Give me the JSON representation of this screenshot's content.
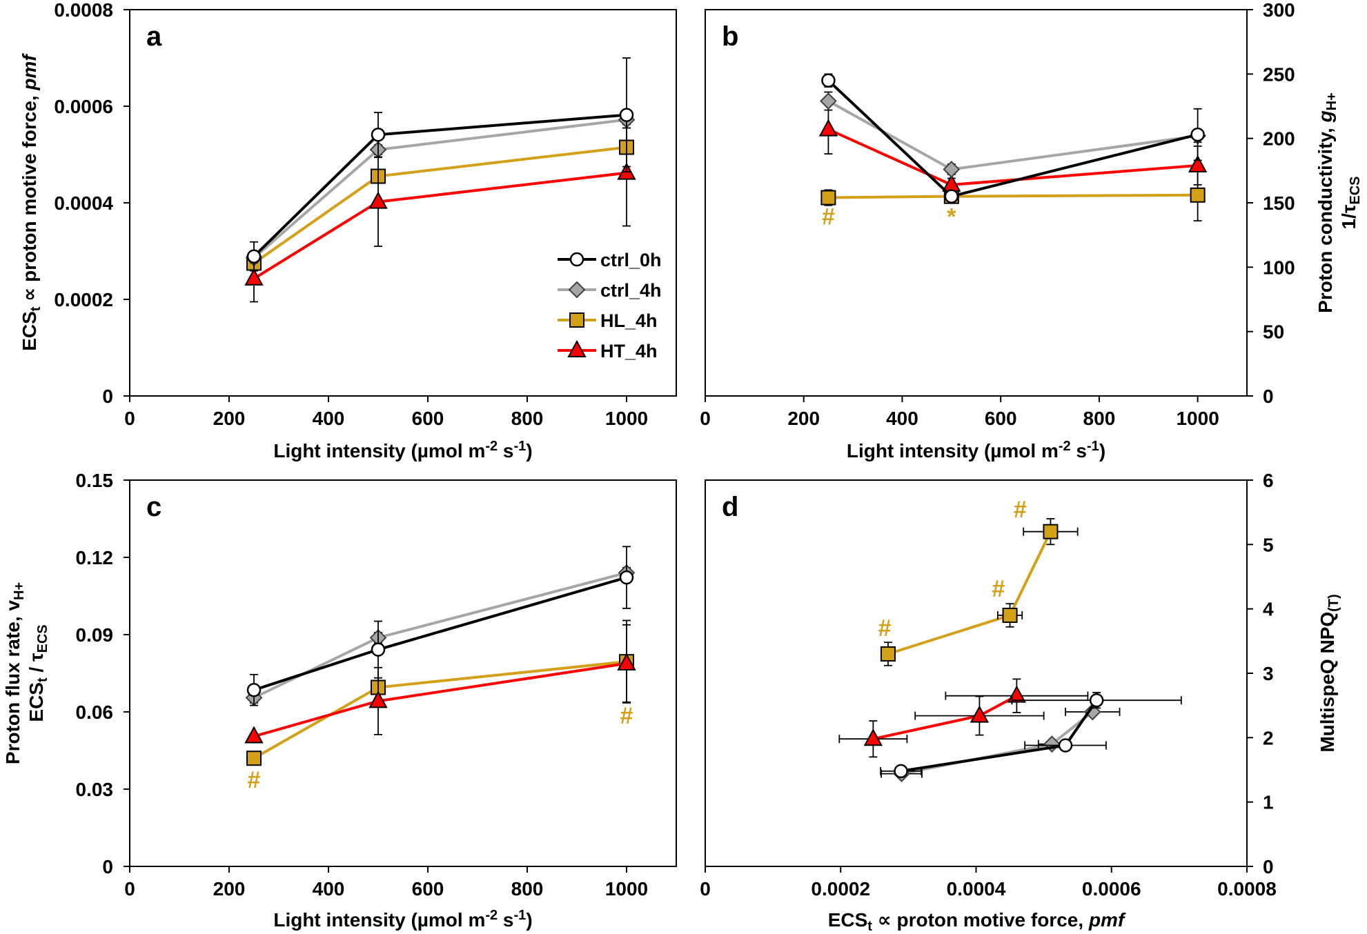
{
  "figure": {
    "series_styles": [
      {
        "name": "ctrl_0h",
        "color": "#000000",
        "marker": "circle",
        "fill": "#ffffff"
      },
      {
        "name": "ctrl_4h",
        "color": "#a6a6a6",
        "marker": "diamond",
        "fill": "#a6a6a6"
      },
      {
        "name": "HL_4h",
        "color": "#d4a017",
        "marker": "square",
        "fill": "#d4a017"
      },
      {
        "name": "HT_4h",
        "color": "#ff0000",
        "marker": "triangle",
        "fill": "#ff0000"
      }
    ],
    "annotation_color": "#d4a017"
  },
  "chart_data": [
    {
      "panel": "a",
      "type": "line",
      "ylabel_parts": [
        "ECS",
        "t",
        " ∝ proton motive force, ",
        "pmf"
      ],
      "xlabel_parts": [
        "Light intensity (µmol m",
        "-2",
        " s",
        "-1",
        ")"
      ],
      "xlim": [
        0,
        1100
      ],
      "ylim": [
        0,
        0.0008
      ],
      "xticks": [
        0,
        200,
        400,
        600,
        800,
        1000
      ],
      "yticks": [
        0,
        0.0002,
        0.0004,
        0.0006,
        0.0008
      ],
      "ytick_labels": [
        "0",
        "0.0002",
        "0.0004",
        "0.0006",
        "0.0008"
      ],
      "yaxis_side": "left",
      "legend": "center-right",
      "series": [
        {
          "name": "ctrl_0h",
          "x": [
            250,
            500,
            1000
          ],
          "y": [
            0.000289,
            0.000541,
            0.000582
          ],
          "yerr": [
            3e-05,
            4.6e-05,
            0.000118
          ],
          "xerr": [
            0,
            0,
            0
          ]
        },
        {
          "name": "ctrl_4h",
          "x": [
            250,
            500,
            1000
          ],
          "y": [
            0.000286,
            0.00051,
            0.000572
          ],
          "yerr": [
            1e-05,
            1e-05,
            1e-05
          ],
          "xerr": [
            0,
            0,
            0
          ]
        },
        {
          "name": "HL_4h",
          "x": [
            250,
            500,
            1000
          ],
          "y": [
            0.000275,
            0.000455,
            0.000515
          ],
          "yerr": [
            1e-05,
            1e-05,
            4e-05
          ],
          "xerr": [
            0,
            0,
            0
          ]
        },
        {
          "name": "HT_4h",
          "x": [
            250,
            500,
            1000
          ],
          "y": [
            0.000243,
            0.000402,
            0.000462
          ],
          "yerr": [
            4.8e-05,
            9.2e-05,
            0.00011
          ],
          "xerr": [
            0,
            0,
            0
          ]
        }
      ],
      "annotations": []
    },
    {
      "panel": "b",
      "type": "line",
      "ylabel_lines": [
        [
          "Proton conductivity, ",
          "g",
          "H+"
        ],
        [
          "1/τ",
          "ECS"
        ]
      ],
      "xlabel_parts": [
        "Light intensity (µmol m",
        "-2",
        " s",
        "-1",
        ")"
      ],
      "xlim": [
        0,
        1100
      ],
      "ylim": [
        0,
        300
      ],
      "xticks": [
        0,
        200,
        400,
        600,
        800,
        1000
      ],
      "yticks": [
        0,
        50,
        100,
        150,
        200,
        250,
        300
      ],
      "ytick_labels": [
        "0",
        "50",
        "100",
        "150",
        "200",
        "250",
        "300"
      ],
      "yaxis_side": "right",
      "series": [
        {
          "name": "ctrl_0h",
          "x": [
            250,
            500,
            1000
          ],
          "y": [
            245,
            155,
            203
          ],
          "yerr": [
            5,
            4,
            20
          ],
          "xerr": [
            0,
            0,
            0
          ]
        },
        {
          "name": "ctrl_4h",
          "x": [
            250,
            500,
            1000
          ],
          "y": [
            229,
            176,
            202
          ],
          "yerr": [
            7,
            4,
            5
          ],
          "xerr": [
            0,
            0,
            0
          ]
        },
        {
          "name": "HL_4h",
          "x": [
            250,
            500,
            1000
          ],
          "y": [
            154,
            155,
            156
          ],
          "yerr": [
            6,
            3,
            20
          ],
          "xerr": [
            0,
            0,
            0
          ]
        },
        {
          "name": "HT_4h",
          "x": [
            250,
            500,
            1000
          ],
          "y": [
            207,
            164,
            179
          ],
          "yerr": [
            19,
            5,
            15
          ],
          "xerr": [
            0,
            0,
            0
          ]
        }
      ],
      "annotations": [
        {
          "text": "#",
          "x": 250,
          "y": 133
        },
        {
          "text": "*",
          "x": 500,
          "y": 133
        }
      ]
    },
    {
      "panel": "c",
      "type": "line",
      "ylabel_lines": [
        [
          "Proton flux rate, v",
          "H+"
        ],
        [
          "ECS",
          "t",
          " / τ",
          "ECS"
        ]
      ],
      "xlabel_parts": [
        "Light intensity (µmol m",
        "-2",
        " s",
        "-1",
        ")"
      ],
      "xlim": [
        0,
        1100
      ],
      "ylim": [
        0,
        0.15
      ],
      "xticks": [
        0,
        200,
        400,
        600,
        800,
        1000
      ],
      "yticks": [
        0,
        0.03,
        0.06,
        0.09,
        0.12,
        0.15
      ],
      "ytick_labels": [
        "0",
        "0.03",
        "0.06",
        "0.09",
        "0.12",
        "0.15"
      ],
      "yaxis_side": "left",
      "series": [
        {
          "name": "ctrl_0h",
          "x": [
            250,
            500,
            1000
          ],
          "y": [
            0.0685,
            0.0842,
            0.1122
          ],
          "yerr": [
            0.006,
            0.011,
            0.012
          ],
          "xerr": [
            0,
            0,
            0
          ]
        },
        {
          "name": "ctrl_4h",
          "x": [
            250,
            500,
            1000
          ],
          "y": [
            0.0655,
            0.0888,
            0.114
          ],
          "yerr": [
            0.002,
            0.002,
            0.002
          ],
          "xerr": [
            0,
            0,
            0
          ]
        },
        {
          "name": "HL_4h",
          "x": [
            250,
            500,
            1000
          ],
          "y": [
            0.042,
            0.0695,
            0.0795
          ],
          "yerr": [
            0.001,
            0.002,
            0.016
          ],
          "xerr": [
            0,
            0,
            0
          ]
        },
        {
          "name": "HT_4h",
          "x": [
            250,
            500,
            1000
          ],
          "y": [
            0.0505,
            0.0642,
            0.0788
          ],
          "yerr": [
            0.001,
            0.013,
            0.015
          ],
          "xerr": [
            0,
            0,
            0
          ]
        }
      ],
      "annotations": [
        {
          "text": "#",
          "x": 250,
          "y": 0.0305
        },
        {
          "text": "#",
          "x": 1000,
          "y": 0.0555
        }
      ]
    },
    {
      "panel": "d",
      "type": "scatter",
      "ylabel_parts": [
        "MultispeQ NPQ",
        "(T)"
      ],
      "xlabel_parts": [
        "ECS",
        "t",
        " ∝ proton motive force, ",
        "pmf"
      ],
      "xlim": [
        0,
        0.0008
      ],
      "ylim": [
        0,
        6
      ],
      "xticks": [
        0,
        0.0002,
        0.0004,
        0.0006,
        0.0008
      ],
      "xtick_labels": [
        "0",
        "0.0002",
        "0.0004",
        "0.0006",
        "0.0008"
      ],
      "yticks": [
        0,
        1,
        2,
        3,
        4,
        5,
        6
      ],
      "ytick_labels": [
        "0",
        "1",
        "2",
        "3",
        "4",
        "5",
        "6"
      ],
      "yaxis_side": "right",
      "series": [
        {
          "name": "ctrl_0h",
          "x": [
            0.000289,
            0.000532,
            0.000578
          ],
          "y": [
            1.48,
            1.88,
            2.58
          ],
          "xerr": [
            3e-05,
            6e-05,
            0.000125
          ],
          "yerr": [
            0.02,
            0.02,
            0.12
          ]
        },
        {
          "name": "ctrl_4h",
          "x": [
            0.00029,
            0.000512,
            0.000572
          ],
          "y": [
            1.44,
            1.9,
            2.4
          ],
          "xerr": [
            3e-05,
            2e-05,
            4e-05
          ],
          "yerr": [
            0.02,
            0.02,
            0.02
          ]
        },
        {
          "name": "HL_4h",
          "x": [
            0.00027,
            0.00045,
            0.00051
          ],
          "y": [
            3.3,
            3.9,
            5.2
          ],
          "xerr": [
            8e-06,
            1.8e-05,
            4e-05
          ],
          "yerr": [
            0.18,
            0.18,
            0.2
          ]
        },
        {
          "name": "HT_4h",
          "x": [
            0.000248,
            0.000405,
            0.00046
          ],
          "y": [
            1.98,
            2.34,
            2.65
          ],
          "xerr": [
            5e-05,
            9.5e-05,
            0.000105
          ],
          "yerr": [
            0.28,
            0.3,
            0.26
          ]
        }
      ],
      "annotations": [
        {
          "text": "#",
          "x": 0.000265,
          "y": 3.58
        },
        {
          "text": "#",
          "x": 0.000433,
          "y": 4.19
        },
        {
          "text": "#",
          "x": 0.000465,
          "y": 5.42
        }
      ]
    }
  ]
}
